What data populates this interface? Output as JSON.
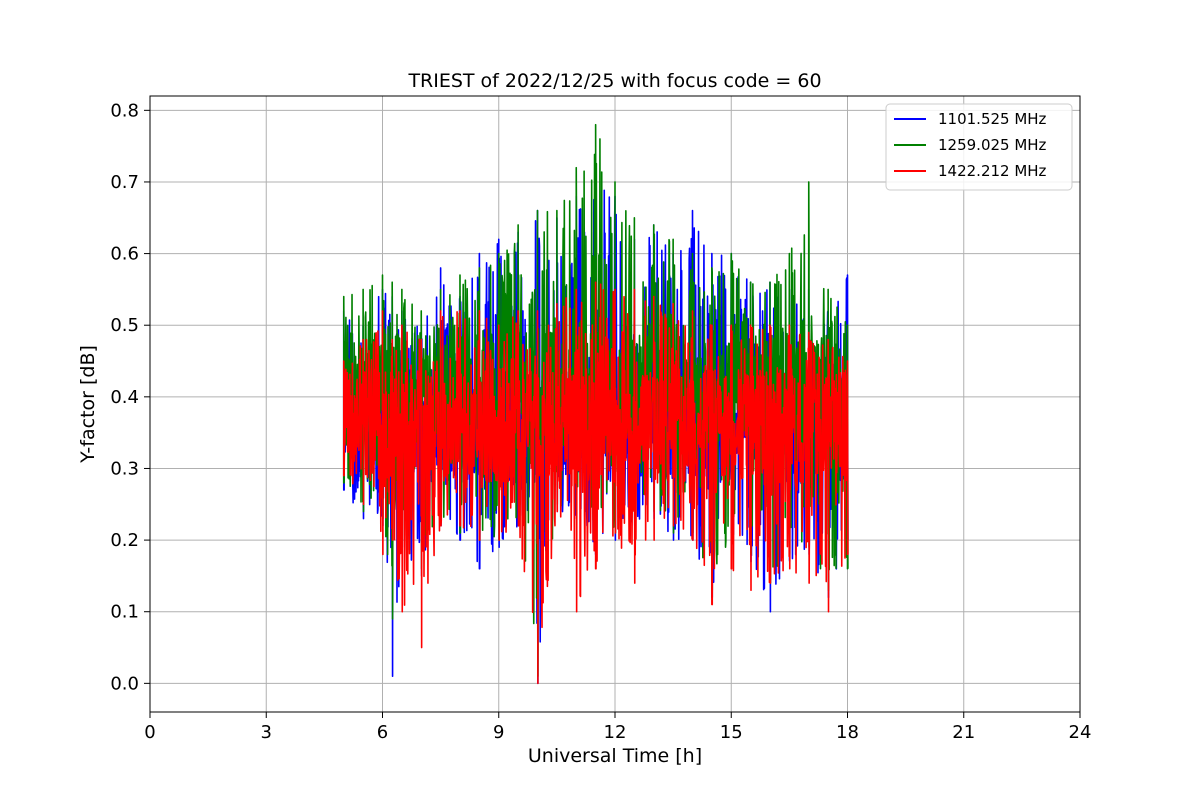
{
  "chart_data": {
    "type": "line",
    "title": "TRIEST of 2022/12/25 with focus code = 60",
    "xlabel": "Universal Time [h]",
    "ylabel": "Y-factor [dB]",
    "xlim": [
      0,
      24
    ],
    "ylim": [
      -0.04,
      0.82
    ],
    "xticks": [
      0,
      3,
      6,
      9,
      12,
      15,
      18,
      21,
      24
    ],
    "yticks": [
      0.0,
      0.1,
      0.2,
      0.3,
      0.4,
      0.5,
      0.6,
      0.7,
      0.8
    ],
    "grid": true,
    "legend_position": "top-right",
    "series": [
      {
        "name": "1101.525 MHz",
        "color": "#0000ff",
        "x": [
          5.0,
          5.5,
          6.0,
          6.25,
          6.5,
          7.0,
          7.5,
          8.0,
          8.5,
          9.0,
          9.5,
          10.0,
          10.5,
          11.0,
          11.5,
          12.0,
          12.5,
          13.0,
          13.5,
          14.0,
          14.5,
          15.0,
          15.5,
          16.0,
          16.5,
          17.0,
          17.5,
          18.0
        ],
        "y_low": [
          0.27,
          0.23,
          0.22,
          0.01,
          0.19,
          0.15,
          0.22,
          0.2,
          0.16,
          0.19,
          0.22,
          0.0,
          0.24,
          0.23,
          0.18,
          0.2,
          0.22,
          0.23,
          0.2,
          0.2,
          0.12,
          0.2,
          0.17,
          0.1,
          0.17,
          0.18,
          0.12,
          0.2
        ],
        "y_high": [
          0.52,
          0.5,
          0.55,
          0.54,
          0.52,
          0.5,
          0.58,
          0.54,
          0.6,
          0.62,
          0.63,
          0.66,
          0.65,
          0.68,
          0.7,
          0.68,
          0.62,
          0.64,
          0.6,
          0.66,
          0.6,
          0.6,
          0.56,
          0.56,
          0.55,
          0.55,
          0.52,
          0.57
        ]
      },
      {
        "name": "1259.025 MHz",
        "color": "#008000",
        "x": [
          5.0,
          5.5,
          6.0,
          6.25,
          6.5,
          7.0,
          7.5,
          8.0,
          8.5,
          9.0,
          9.5,
          10.0,
          10.5,
          11.0,
          11.5,
          12.0,
          12.5,
          13.0,
          13.5,
          14.0,
          14.5,
          15.0,
          15.5,
          16.0,
          16.5,
          17.0,
          17.5,
          18.0
        ],
        "y_low": [
          0.28,
          0.24,
          0.23,
          0.09,
          0.2,
          0.16,
          0.23,
          0.21,
          0.2,
          0.2,
          0.23,
          0.01,
          0.25,
          0.24,
          0.2,
          0.21,
          0.23,
          0.24,
          0.21,
          0.21,
          0.13,
          0.21,
          0.18,
          0.14,
          0.18,
          0.19,
          0.13,
          0.16
        ],
        "y_high": [
          0.54,
          0.55,
          0.57,
          0.56,
          0.55,
          0.52,
          0.55,
          0.57,
          0.58,
          0.6,
          0.64,
          0.66,
          0.66,
          0.72,
          0.78,
          0.7,
          0.65,
          0.64,
          0.62,
          0.6,
          0.58,
          0.6,
          0.56,
          0.56,
          0.6,
          0.7,
          0.55,
          0.5
        ]
      },
      {
        "name": "1422.212 MHz",
        "color": "#ff0000",
        "x": [
          5.0,
          5.5,
          6.0,
          6.25,
          6.5,
          7.0,
          7.5,
          8.0,
          8.5,
          9.0,
          9.5,
          10.0,
          10.5,
          11.0,
          11.5,
          12.0,
          12.5,
          13.0,
          13.5,
          14.0,
          14.5,
          15.0,
          15.5,
          16.0,
          16.5,
          17.0,
          17.5,
          18.0
        ],
        "y_low": [
          0.29,
          0.25,
          0.18,
          0.2,
          0.1,
          0.05,
          0.22,
          0.22,
          0.2,
          0.2,
          0.22,
          0.0,
          0.24,
          0.1,
          0.16,
          0.21,
          0.14,
          0.2,
          0.22,
          0.2,
          0.11,
          0.16,
          0.13,
          0.14,
          0.16,
          0.14,
          0.1,
          0.18
        ],
        "y_high": [
          0.45,
          0.48,
          0.52,
          0.48,
          0.5,
          0.48,
          0.52,
          0.52,
          0.52,
          0.5,
          0.52,
          0.52,
          0.53,
          0.55,
          0.56,
          0.55,
          0.55,
          0.54,
          0.53,
          0.52,
          0.5,
          0.5,
          0.5,
          0.5,
          0.5,
          0.49,
          0.48,
          0.45
        ]
      }
    ]
  }
}
